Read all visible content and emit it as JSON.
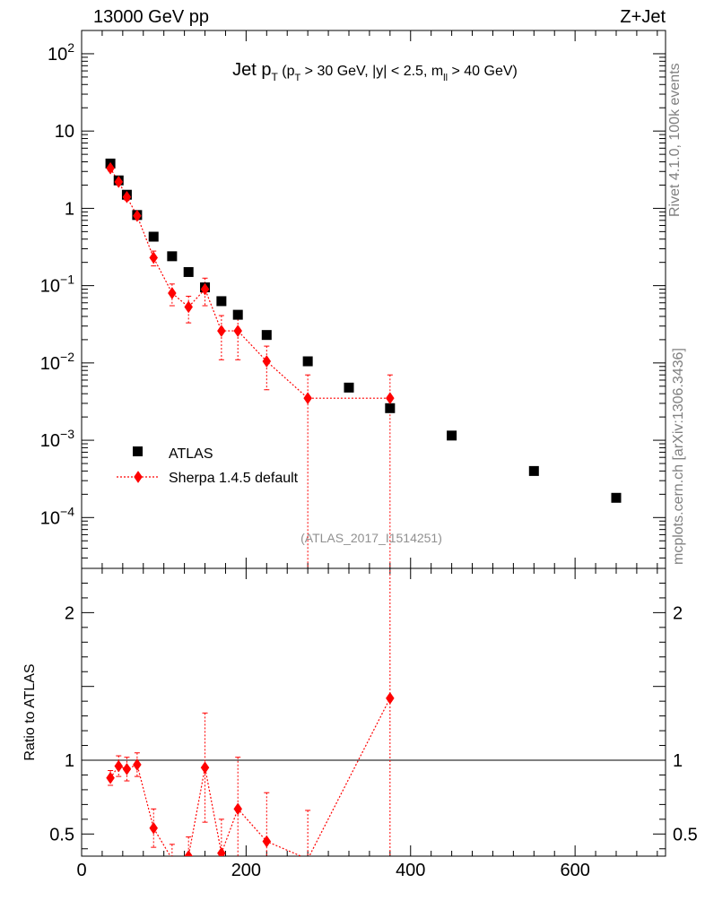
{
  "header": {
    "beam_label": "13000 GeV pp",
    "process_label": "Z+Jet"
  },
  "side_text": {
    "rivet_label": "Rivet 4.1.0,  100k events",
    "source_label": "mcplots.cern.ch [arXiv:1306.3436]"
  },
  "chart_data": {
    "type": "scatter",
    "title": {
      "jet": "Jet p",
      "jet_sub": "T",
      "p1": "(p",
      "p1_sub": "T",
      "p2": " > 30 GeV, |y| < 2.5, m",
      "p2_sub": "ll",
      "p3": " > 40 GeV)"
    },
    "analysis_id": "(ATLAS_2017_I1514251)",
    "xlabel": "",
    "ylabel_main": "",
    "ylabel_ratio": "Ratio to ATLAS",
    "xlim": [
      0,
      710
    ],
    "ylim_main": [
      2.2e-05,
      200
    ],
    "ylim_ratio": [
      0.35,
      2.3
    ],
    "yscale_main": "log",
    "x_ticks": [
      0,
      200,
      400,
      600
    ],
    "x_tick_labels": [
      "0",
      "200",
      "400",
      "600"
    ],
    "y_ticks_main": [
      {
        "value": 100,
        "base": "10",
        "exp": "2"
      },
      {
        "value": 10,
        "base": "10",
        "exp": ""
      },
      {
        "value": 1,
        "base": "1",
        "exp": ""
      },
      {
        "value": 0.1,
        "base": "10",
        "exp": "−1"
      },
      {
        "value": 0.01,
        "base": "10",
        "exp": "−2"
      },
      {
        "value": 0.001,
        "base": "10",
        "exp": "−3"
      },
      {
        "value": 0.0001,
        "base": "10",
        "exp": "−4"
      }
    ],
    "y_ticks_ratio": [
      {
        "value": 2,
        "label": "2"
      },
      {
        "value": 1,
        "label": "1"
      },
      {
        "value": 0.5,
        "label": "0.5"
      }
    ],
    "legend_position": "bottom-left",
    "series": [
      {
        "name": "ATLAS",
        "color": "#000000",
        "marker": "square",
        "x": [
          35,
          45,
          55,
          67.5,
          87.5,
          110,
          130,
          150,
          170,
          190,
          225,
          275,
          325,
          375,
          450,
          550,
          650
        ],
        "values": [
          3.8,
          2.3,
          1.5,
          0.82,
          0.43,
          0.24,
          0.15,
          0.095,
          0.063,
          0.042,
          0.023,
          0.0105,
          0.0048,
          0.0026,
          0.00115,
          0.0004,
          0.00018
        ]
      },
      {
        "name": "Sherpa 1.4.5 default",
        "color": "#ff0000",
        "marker": "diamond",
        "x": [
          35,
          45,
          55,
          67.5,
          87.5,
          110,
          130,
          150,
          170,
          190,
          225,
          275,
          375
        ],
        "xerr": [
          5,
          5,
          5,
          7.5,
          12.5,
          10,
          10,
          10,
          10,
          10,
          25,
          25,
          75
        ],
        "values": [
          3.3,
          2.2,
          1.4,
          0.8,
          0.23,
          0.08,
          0.053,
          0.09,
          0.026,
          0.026,
          0.0105,
          0.0035,
          0.0035
        ],
        "err_low": [
          0.25,
          0.15,
          0.12,
          0.07,
          0.05,
          0.025,
          0.02,
          0.035,
          0.015,
          0.015,
          0.006,
          0.0035,
          0.0035
        ],
        "err_high": [
          0.25,
          0.15,
          0.12,
          0.07,
          0.05,
          0.025,
          0.02,
          0.035,
          0.015,
          0.015,
          0.006,
          0.0035,
          0.0035
        ]
      }
    ],
    "ratio": {
      "name": "Sherpa 1.4.5 default / ATLAS",
      "color": "#ff0000",
      "x": [
        35,
        45,
        55,
        67.5,
        87.5,
        110,
        130,
        150,
        170,
        190,
        225,
        275,
        375
      ],
      "values": [
        0.88,
        0.96,
        0.94,
        0.97,
        0.54,
        0.33,
        0.35,
        0.95,
        0.37,
        0.67,
        0.45,
        0.33,
        1.42
      ],
      "err_low": [
        0.05,
        0.07,
        0.08,
        0.08,
        0.13,
        0.1,
        0.13,
        0.37,
        0.23,
        0.35,
        0.26,
        0.33,
        1.42
      ],
      "err_high": [
        0.05,
        0.07,
        0.08,
        0.08,
        0.13,
        0.1,
        0.13,
        0.37,
        0.23,
        0.35,
        0.33,
        0.33,
        1.5
      ]
    }
  }
}
